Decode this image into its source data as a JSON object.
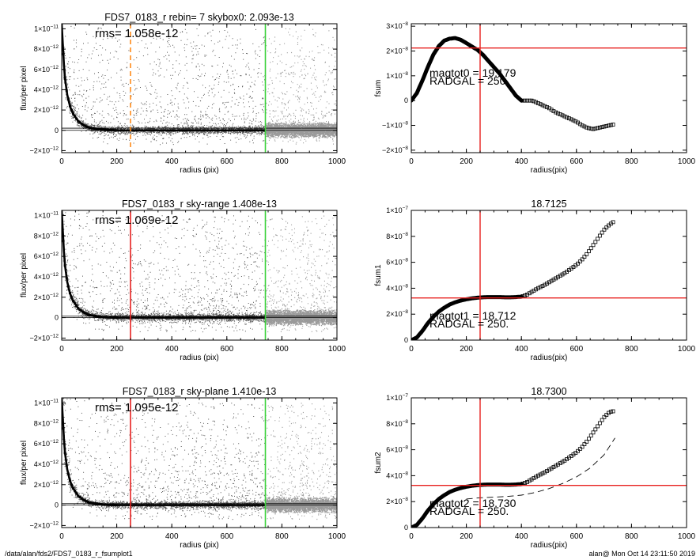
{
  "footer": {
    "path": "/data/alan/fds2/FDS7_0183_r_fsumplot1",
    "stamp": "alan@  Mon Oct 14 23:11:50 2019"
  },
  "chart_data": [
    {
      "type": "scatter",
      "panel": "profile-1",
      "title": "FDS7_0183_r rebin= 7    skybox0:  2.093e-13",
      "annotation": "rms= 1.058e-12",
      "xlabel": "radius (pix)",
      "ylabel": "flux/per pixel",
      "xlim": [
        0,
        1000
      ],
      "ylim": [
        -2.2e-12,
        1.05e-11
      ],
      "xticks": [
        0,
        200,
        400,
        600,
        800,
        1000
      ],
      "yticks": [
        {
          "v": -2e-12,
          "m": "−2",
          "e": "−12"
        },
        {
          "v": 0,
          "m": "0",
          "e": ""
        },
        {
          "v": 2e-12,
          "m": "2",
          "e": "−12"
        },
        {
          "v": 4e-12,
          "m": "4",
          "e": "−12"
        },
        {
          "v": 6e-12,
          "m": "6",
          "e": "−12"
        },
        {
          "v": 8e-12,
          "m": "8",
          "e": "−12"
        },
        {
          "v": 1e-11,
          "m": "1",
          "e": "−11"
        }
      ],
      "marker_lines": [
        {
          "x": 250,
          "color": "#ff8c1a",
          "style": "dashed"
        },
        {
          "x": 740,
          "color": "#3cd23c",
          "style": "solid"
        }
      ],
      "profile": {
        "x": [
          0,
          10,
          20,
          30,
          40,
          60,
          80,
          100,
          150,
          200,
          300,
          400,
          500,
          600,
          740
        ],
        "y": [
          1.05e-11,
          5.5e-12,
          3.5e-12,
          2.4e-12,
          1.7e-12,
          9e-13,
          5e-13,
          2.5e-13,
          5e-14,
          0,
          0,
          0,
          0,
          0,
          0
        ]
      },
      "baselines": [
        0,
        2.093e-13
      ],
      "colors": {
        "points": "#555555",
        "bright": "#9a9a9a",
        "profile": "#000000"
      }
    },
    {
      "type": "line",
      "panel": "growth-1",
      "title": "",
      "label_mag": "magtot0 = 19.179",
      "label_rad": "RADGAL =   250.",
      "xlabel": "radius(pix)",
      "ylabel": "fsum",
      "xlim": [
        0,
        1000
      ],
      "ylim": [
        -2.1e-08,
        3.1e-08
      ],
      "xticks": [
        0,
        200,
        400,
        600,
        800,
        1000
      ],
      "yticks": [
        {
          "v": -2e-08,
          "m": "−2",
          "e": "−8"
        },
        {
          "v": -1e-08,
          "m": "−1",
          "e": "−8"
        },
        {
          "v": 0,
          "m": "0",
          "e": ""
        },
        {
          "v": 1e-08,
          "m": "1",
          "e": "−8"
        },
        {
          "v": 2e-08,
          "m": "2",
          "e": "−8"
        },
        {
          "v": 3e-08,
          "m": "3",
          "e": "−8"
        }
      ],
      "vline": 250,
      "hline": 2.12e-08,
      "series": [
        {
          "x": [
            0,
            20,
            40,
            60,
            80,
            100,
            120,
            140,
            160,
            180,
            200,
            220,
            240,
            260,
            280,
            300,
            320,
            340,
            360,
            380,
            400,
            420,
            440,
            460,
            480,
            500,
            520,
            540,
            560,
            580,
            600,
            620,
            640,
            660,
            680,
            700,
            720,
            740
          ],
          "y": [
            0,
            3e-09,
            8e-09,
            1.35e-08,
            1.85e-08,
            2.2e-08,
            2.42e-08,
            2.5e-08,
            2.52e-08,
            2.45e-08,
            2.32e-08,
            2.18e-08,
            2.05e-08,
            1.85e-08,
            1.6e-08,
            1.35e-08,
            1.1e-08,
            8e-09,
            5e-09,
            2e-09,
            0,
            0,
            0,
            -1e-09,
            -2e-09,
            -3e-09,
            -4.5e-09,
            -5.5e-09,
            -6.5e-09,
            -7.5e-09,
            -8.5e-09,
            -1e-08,
            -1.1e-08,
            -1.15e-08,
            -1.1e-08,
            -1.05e-08,
            -1e-08,
            -9.5e-09
          ]
        }
      ]
    },
    {
      "type": "scatter",
      "panel": "profile-2",
      "title": "FDS7_0183_r sky-range  1.408e-13",
      "annotation": "rms= 1.069e-12",
      "xlabel": "radius (pix)",
      "ylabel": "flux/per pixel",
      "xlim": [
        0,
        1000
      ],
      "ylim": [
        -2.2e-12,
        1.05e-11
      ],
      "xticks": [
        0,
        200,
        400,
        600,
        800,
        1000
      ],
      "yticks": [
        {
          "v": -2e-12,
          "m": "−2",
          "e": "−12"
        },
        {
          "v": 0,
          "m": "0",
          "e": ""
        },
        {
          "v": 2e-12,
          "m": "2",
          "e": "−12"
        },
        {
          "v": 4e-12,
          "m": "4",
          "e": "−12"
        },
        {
          "v": 6e-12,
          "m": "6",
          "e": "−12"
        },
        {
          "v": 8e-12,
          "m": "8",
          "e": "−12"
        },
        {
          "v": 1e-11,
          "m": "1",
          "e": "−11"
        }
      ],
      "marker_lines": [
        {
          "x": 250,
          "color": "#e8211f",
          "style": "solid"
        },
        {
          "x": 740,
          "color": "#3cd23c",
          "style": "solid"
        }
      ],
      "profile": {
        "x": [
          0,
          10,
          20,
          30,
          40,
          60,
          80,
          100,
          150,
          200,
          300,
          400,
          500,
          600,
          740
        ],
        "y": [
          1.05e-11,
          5.5e-12,
          3.5e-12,
          2.4e-12,
          1.7e-12,
          9e-13,
          5e-13,
          2.5e-13,
          5e-14,
          0,
          0,
          0,
          0,
          0,
          0
        ]
      },
      "baselines": [
        0,
        1.408e-13
      ],
      "colors": {
        "points": "#555555",
        "bright": "#9a9a9a",
        "profile": "#000000"
      }
    },
    {
      "type": "line",
      "panel": "growth-2",
      "title": "18.7125",
      "label_mag": "magtot1 = 18.712",
      "label_rad": "RADGAL =   250.",
      "xlabel": "radius(pix)",
      "ylabel": "fsum1",
      "xlim": [
        0,
        1000
      ],
      "ylim": [
        0,
        1e-07
      ],
      "xticks": [
        0,
        200,
        400,
        600,
        800,
        1000
      ],
      "yticks": [
        {
          "v": 0,
          "m": "0",
          "e": ""
        },
        {
          "v": 2e-08,
          "m": "2",
          "e": "−8"
        },
        {
          "v": 4e-08,
          "m": "4",
          "e": "−8"
        },
        {
          "v": 6e-08,
          "m": "6",
          "e": "−8"
        },
        {
          "v": 8e-08,
          "m": "8",
          "e": "−8"
        },
        {
          "v": 1e-07,
          "m": "1",
          "e": "−7"
        }
      ],
      "vline": 250,
      "hline": 3.25e-08,
      "series": [
        {
          "x": [
            0,
            20,
            40,
            60,
            80,
            100,
            120,
            140,
            160,
            180,
            200,
            220,
            240,
            260,
            280,
            300,
            320,
            340,
            360,
            380,
            400,
            420,
            440,
            460,
            480,
            500,
            520,
            540,
            560,
            580,
            600,
            620,
            640,
            660,
            680,
            700,
            720,
            740
          ],
          "y": [
            0,
            2e-09,
            7e-09,
            1.3e-08,
            1.8e-08,
            2.2e-08,
            2.5e-08,
            2.75e-08,
            2.92e-08,
            3.05e-08,
            3.15e-08,
            3.22e-08,
            3.27e-08,
            3.3e-08,
            3.32e-08,
            3.32e-08,
            3.32e-08,
            3.3e-08,
            3.3e-08,
            3.32e-08,
            3.35e-08,
            3.5e-08,
            3.75e-08,
            4e-08,
            4.2e-08,
            4.45e-08,
            4.7e-08,
            4.95e-08,
            5.2e-08,
            5.5e-08,
            5.8e-08,
            6.2e-08,
            6.7e-08,
            7.3e-08,
            7.9e-08,
            8.5e-08,
            8.9e-08,
            9.2e-08
          ]
        }
      ]
    },
    {
      "type": "scatter",
      "panel": "profile-3",
      "title": "FDS7_0183_r sky-plane  1.410e-13",
      "annotation": "rms= 1.095e-12",
      "xlabel": "radius (pix)",
      "ylabel": "flux/per pixel",
      "xlim": [
        0,
        1000
      ],
      "ylim": [
        -2.2e-12,
        1.05e-11
      ],
      "xticks": [
        0,
        200,
        400,
        600,
        800,
        1000
      ],
      "yticks": [
        {
          "v": -2e-12,
          "m": "−2",
          "e": "−12"
        },
        {
          "v": 0,
          "m": "0",
          "e": ""
        },
        {
          "v": 2e-12,
          "m": "2",
          "e": "−12"
        },
        {
          "v": 4e-12,
          "m": "4",
          "e": "−12"
        },
        {
          "v": 6e-12,
          "m": "6",
          "e": "−12"
        },
        {
          "v": 8e-12,
          "m": "8",
          "e": "−12"
        },
        {
          "v": 1e-11,
          "m": "1",
          "e": "−11"
        }
      ],
      "marker_lines": [
        {
          "x": 250,
          "color": "#e8211f",
          "style": "solid"
        },
        {
          "x": 740,
          "color": "#3cd23c",
          "style": "solid"
        }
      ],
      "profile": {
        "x": [
          0,
          10,
          20,
          30,
          40,
          60,
          80,
          100,
          150,
          200,
          300,
          400,
          500,
          600,
          740
        ],
        "y": [
          1.05e-11,
          5.5e-12,
          3.5e-12,
          2.4e-12,
          1.7e-12,
          9e-13,
          5e-13,
          2.5e-13,
          5e-14,
          0,
          0,
          0,
          0,
          0,
          0
        ]
      },
      "baselines": [
        0,
        1.41e-13
      ],
      "colors": {
        "points": "#555555",
        "bright": "#9a9a9a",
        "profile": "#000000"
      }
    },
    {
      "type": "line",
      "panel": "growth-3",
      "title": "18.7300",
      "label_mag": "magtot2 = 18.730",
      "label_rad": "RADGAL =   250.",
      "xlabel": "radius(pix)",
      "ylabel": "fsum2",
      "xlim": [
        0,
        1000
      ],
      "ylim": [
        0,
        1e-07
      ],
      "xticks": [
        0,
        200,
        400,
        600,
        800,
        1000
      ],
      "yticks": [
        {
          "v": 0,
          "m": "0",
          "e": ""
        },
        {
          "v": 2e-08,
          "m": "2",
          "e": "−8"
        },
        {
          "v": 4e-08,
          "m": "4",
          "e": "−8"
        },
        {
          "v": 6e-08,
          "m": "6",
          "e": "−8"
        },
        {
          "v": 8e-08,
          "m": "8",
          "e": "−8"
        },
        {
          "v": 1e-07,
          "m": "1",
          "e": "−7"
        }
      ],
      "vline": 250,
      "hline": 3.25e-08,
      "series": [
        {
          "x": [
            0,
            20,
            40,
            60,
            80,
            100,
            120,
            140,
            160,
            180,
            200,
            220,
            240,
            260,
            280,
            300,
            320,
            340,
            360,
            380,
            400,
            420,
            440,
            460,
            480,
            500,
            520,
            540,
            560,
            580,
            600,
            620,
            640,
            660,
            680,
            700,
            720,
            740
          ],
          "y": [
            0,
            2e-09,
            7e-09,
            1.3e-08,
            1.8e-08,
            2.2e-08,
            2.5e-08,
            2.75e-08,
            2.92e-08,
            3.05e-08,
            3.15e-08,
            3.22e-08,
            3.27e-08,
            3.3e-08,
            3.32e-08,
            3.32e-08,
            3.32e-08,
            3.3e-08,
            3.3e-08,
            3.32e-08,
            3.35e-08,
            3.5e-08,
            3.75e-08,
            4e-08,
            4.2e-08,
            4.45e-08,
            4.7e-08,
            4.95e-08,
            5.2e-08,
            5.5e-08,
            5.8e-08,
            6.2e-08,
            6.7e-08,
            7.3e-08,
            7.9e-08,
            8.5e-08,
            8.9e-08,
            9e-08
          ]
        },
        {
          "style": "dashed",
          "x": [
            200,
            250,
            300,
            350,
            400,
            450,
            500,
            550,
            600,
            650,
            700,
            740
          ],
          "y": [
            2.2e-08,
            2.3e-08,
            2.35e-08,
            2.4e-08,
            2.5e-08,
            2.7e-08,
            3e-08,
            3.4e-08,
            3.9e-08,
            4.6e-08,
            5.6e-08,
            6.9e-08
          ]
        }
      ]
    }
  ]
}
